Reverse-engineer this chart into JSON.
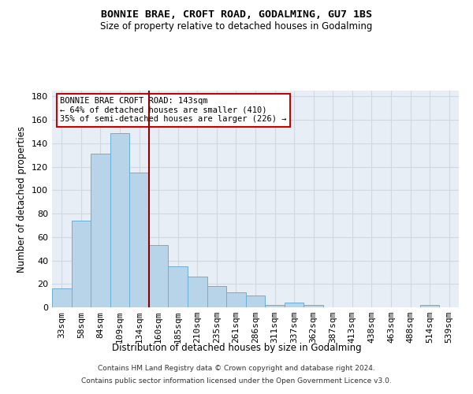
{
  "title": "BONNIE BRAE, CROFT ROAD, GODALMING, GU7 1BS",
  "subtitle": "Size of property relative to detached houses in Godalming",
  "xlabel": "Distribution of detached houses by size in Godalming",
  "ylabel": "Number of detached properties",
  "categories": [
    "33sqm",
    "58sqm",
    "84sqm",
    "109sqm",
    "134sqm",
    "160sqm",
    "185sqm",
    "210sqm",
    "235sqm",
    "261sqm",
    "286sqm",
    "311sqm",
    "337sqm",
    "362sqm",
    "387sqm",
    "413sqm",
    "438sqm",
    "463sqm",
    "488sqm",
    "514sqm",
    "539sqm"
  ],
  "values": [
    16,
    74,
    131,
    149,
    115,
    53,
    35,
    26,
    18,
    13,
    10,
    2,
    4,
    2,
    0,
    0,
    0,
    0,
    0,
    2,
    0
  ],
  "bar_color": "#b8d4e8",
  "bar_edge_color": "#6aaed6",
  "vline_x": 4.5,
  "vline_color": "#8b0000",
  "annotation_title": "BONNIE BRAE CROFT ROAD: 143sqm",
  "annotation_line1": "← 64% of detached houses are smaller (410)",
  "annotation_line2": "35% of semi-detached houses are larger (226) →",
  "annotation_box_color": "#ffffff",
  "annotation_box_edge": "#cc0000",
  "ylim": [
    0,
    185
  ],
  "yticks": [
    0,
    20,
    40,
    60,
    80,
    100,
    120,
    140,
    160,
    180
  ],
  "grid_color": "#d0d8e4",
  "bg_color": "#e8eef5",
  "footnote1": "Contains HM Land Registry data © Crown copyright and database right 2024.",
  "footnote2": "Contains public sector information licensed under the Open Government Licence v3.0."
}
